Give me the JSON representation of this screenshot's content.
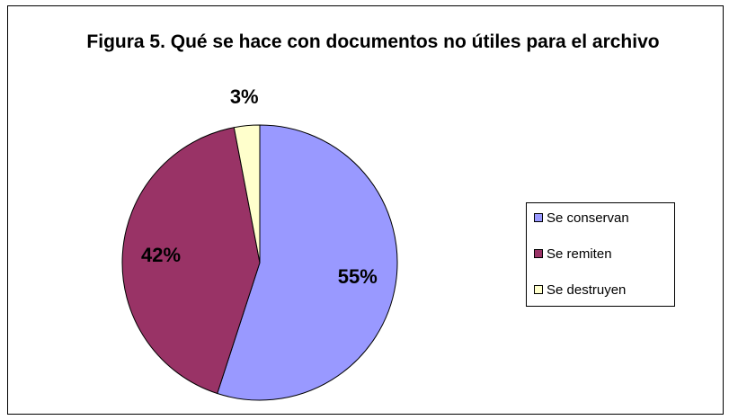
{
  "chart_data": {
    "type": "pie",
    "title": "Figura 5. Qué se hace con documentos no útiles para el archivo",
    "categories": [
      "Se conservan",
      "Se remiten",
      "Se destruyen"
    ],
    "values": [
      55,
      42,
      3
    ],
    "value_labels": [
      "55%",
      "42%",
      "3%"
    ],
    "colors": [
      "#9999ff",
      "#993366",
      "#ffffcc"
    ],
    "legend": "right"
  }
}
